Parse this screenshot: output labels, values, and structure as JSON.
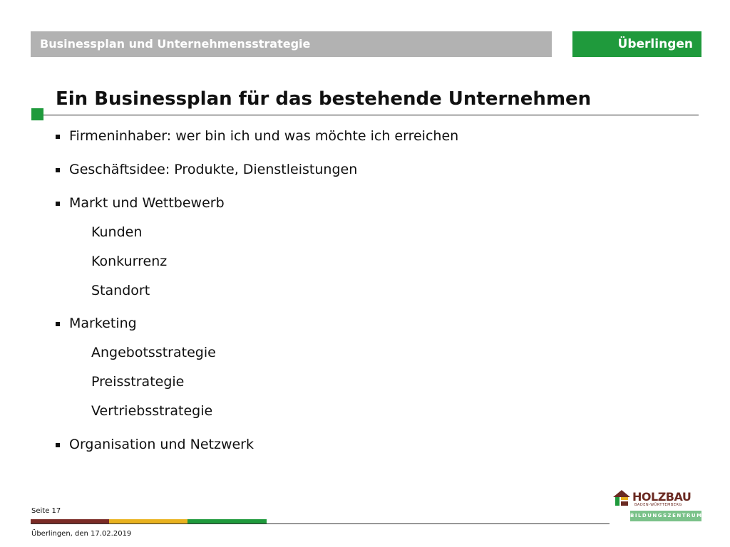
{
  "header": {
    "title": "Businessplan und Unternehmensstrategie",
    "location": "Überlingen"
  },
  "slide": {
    "title": "Ein Businessplan für das bestehende Unternehmen",
    "items": [
      {
        "text": "Firmeninhaber: wer bin ich und was möchte ich erreichen"
      },
      {
        "text": "Geschäftsidee: Produkte, Dienstleistungen"
      },
      {
        "text": "Markt und Wettbewerb",
        "sub": [
          "Kunden",
          "Konkurrenz",
          "Standort"
        ]
      },
      {
        "text": "Marketing",
        "sub": [
          "Angebotsstrategie",
          "Preisstrategie",
          "Vertriebsstrategie"
        ]
      },
      {
        "text": "Organisation und Netzwerk"
      }
    ]
  },
  "footer": {
    "page": "Seite 17",
    "date": "Überlingen, den 17.02.2019"
  },
  "logo": {
    "name": "HOLZBAU",
    "sub": "BADEN-WÜRTTEMBERG",
    "tag": "BILDUNGSZENTRUM"
  },
  "colors": {
    "accent_green": "#1f9a3c",
    "header_gray": "#b2b2b2",
    "stripe_red": "#7a2b26",
    "stripe_yellow": "#e9b21f"
  }
}
